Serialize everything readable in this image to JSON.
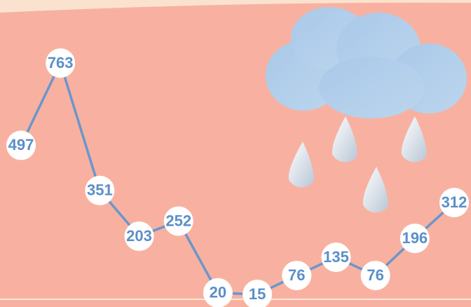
{
  "chart_data": {
    "type": "line",
    "values": [
      497,
      763,
      351,
      203,
      252,
      20,
      15,
      76,
      135,
      76,
      196,
      312
    ],
    "color": "#6a96cc"
  }
}
